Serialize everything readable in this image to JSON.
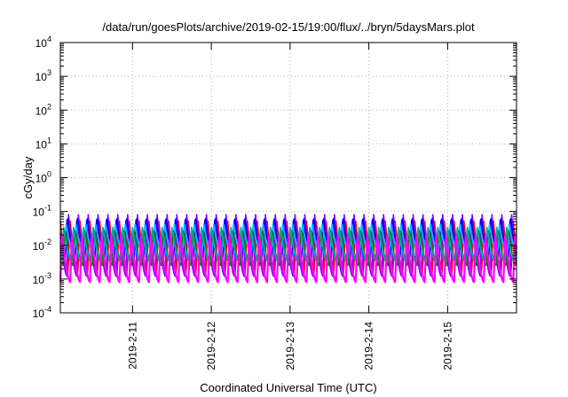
{
  "chart_data": {
    "type": "line",
    "title": "/data/run/goesPlots/archive/2019-02-15/19:00/flux/../bryn/5daysMars.plot",
    "xlabel": "Coordinated Universal Time (UTC)",
    "ylabel": "cGy/day",
    "y_scale": "log",
    "ylim": [
      0.0001,
      10000
    ],
    "y_ticks": [
      {
        "base": "10",
        "exp": "-4"
      },
      {
        "base": "10",
        "exp": "-3"
      },
      {
        "base": "10",
        "exp": "-2"
      },
      {
        "base": "10",
        "exp": "-1"
      },
      {
        "base": "10",
        "exp": "0"
      },
      {
        "base": "10",
        "exp": "1"
      },
      {
        "base": "10",
        "exp": "2"
      },
      {
        "base": "10",
        "exp": "3"
      },
      {
        "base": "10",
        "exp": "4"
      }
    ],
    "x_ticks": [
      "2019-2-11",
      "2019-2-12",
      "2019-2-13",
      "2019-2-14",
      "2019-2-15"
    ],
    "xlim": [
      "2019-02-10 02:00",
      "2019-02-15 21:00"
    ],
    "grid": true,
    "legend": "none",
    "cycle_period_hours": 3,
    "series": [
      {
        "color": "#ff0000",
        "peak": 0.075,
        "trough": 0.0013
      },
      {
        "color": "#8800ff",
        "peak": 0.09,
        "trough": 0.0012
      },
      {
        "color": "#0000ff",
        "peak": 0.085,
        "trough": 0.004
      },
      {
        "color": "#00bfff",
        "peak": 0.045,
        "trough": 0.005
      },
      {
        "color": "#008800",
        "peak": 0.035,
        "trough": 0.0025
      },
      {
        "color": "#00aaaa",
        "peak": 0.04,
        "trough": 0.003
      },
      {
        "color": "#ff00ff",
        "peak": 0.02,
        "trough": 0.0008
      }
    ]
  }
}
